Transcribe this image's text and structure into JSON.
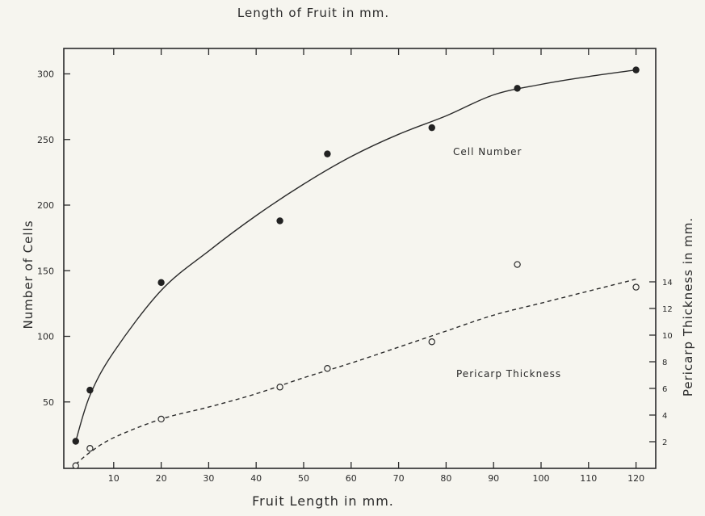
{
  "chart_data": {
    "type": "scatter",
    "top_title": "Length of Fruit in mm.",
    "xlabel": "Fruit Length in mm.",
    "ylabel_left": "Number of Cells",
    "ylabel_right": "Pericarp Thickness in mm.",
    "x_ticks": [
      10,
      20,
      30,
      40,
      50,
      60,
      70,
      80,
      90,
      100,
      110,
      120
    ],
    "y_left_ticks": [
      50,
      100,
      150,
      200,
      250,
      300
    ],
    "y_right_ticks": [
      2,
      4,
      6,
      8,
      10,
      12,
      14
    ],
    "xlim": [
      0,
      125
    ],
    "ylim_left": [
      0,
      320
    ],
    "ylim_right": [
      0,
      30
    ],
    "series": [
      {
        "name": "Cell Number",
        "axis": "left",
        "marker": "filled",
        "line": "solid",
        "points": [
          [
            2,
            20
          ],
          [
            5,
            59
          ],
          [
            20,
            141
          ],
          [
            45,
            188
          ],
          [
            55,
            239
          ],
          [
            77,
            259
          ],
          [
            95,
            289
          ],
          [
            120,
            303
          ]
        ],
        "curve": [
          [
            2,
            20
          ],
          [
            5,
            55
          ],
          [
            10,
            88
          ],
          [
            20,
            135
          ],
          [
            30,
            165
          ],
          [
            40,
            192
          ],
          [
            50,
            216
          ],
          [
            60,
            237
          ],
          [
            70,
            254
          ],
          [
            80,
            268
          ],
          [
            90,
            284
          ],
          [
            100,
            292
          ],
          [
            110,
            298
          ],
          [
            120,
            303
          ]
        ]
      },
      {
        "name": "Pericarp Thickness",
        "axis": "right",
        "marker": "open",
        "line": "dashed",
        "points": [
          [
            2,
            0.2
          ],
          [
            5,
            1.5
          ],
          [
            20,
            3.7
          ],
          [
            45,
            6.1
          ],
          [
            55,
            7.5
          ],
          [
            77,
            9.5
          ],
          [
            95,
            15.3
          ],
          [
            120,
            13.6
          ]
        ],
        "curve": [
          [
            2,
            0.3
          ],
          [
            5,
            1.2
          ],
          [
            10,
            2.3
          ],
          [
            20,
            3.7
          ],
          [
            30,
            4.6
          ],
          [
            40,
            5.6
          ],
          [
            50,
            6.8
          ],
          [
            60,
            7.9
          ],
          [
            70,
            9.1
          ],
          [
            80,
            10.3
          ],
          [
            90,
            11.5
          ],
          [
            100,
            12.4
          ],
          [
            110,
            13.3
          ],
          [
            120,
            14.2
          ]
        ]
      }
    ]
  }
}
